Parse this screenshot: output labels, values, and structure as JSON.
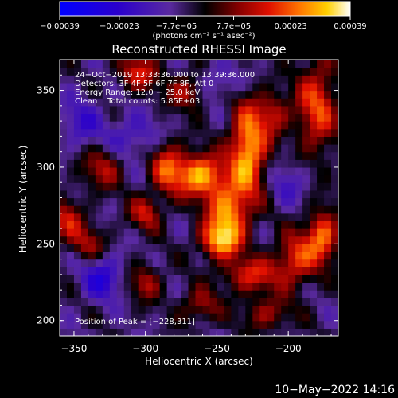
{
  "chart_data": {
    "type": "heatmap",
    "title": "Reconstructed RHESSI Image",
    "xlabel": "Heliocentric X (arcsec)",
    "ylabel": "Heliocentric Y (arcsec)",
    "xlim": [
      -360,
      -165
    ],
    "ylim": [
      190,
      370
    ],
    "x_ticks": [
      -350,
      -300,
      -250,
      -200
    ],
    "y_ticks": [
      200,
      250,
      300,
      350
    ],
    "x_tick_labels": [
      "−350",
      "−300",
      "−250",
      "−200"
    ],
    "y_tick_labels": [
      "200",
      "250",
      "300",
      "350"
    ],
    "colorbar": {
      "ticks": [
        -0.00039,
        -0.00023,
        -7.7e-05,
        7.7e-05,
        0.00023,
        0.00039
      ],
      "tick_labels": [
        "−0.00039",
        "−0.00023",
        "−7.7e−05",
        "7.7e−05",
        "0.00023",
        "0.00039"
      ],
      "range": [
        -0.00039,
        0.00039
      ],
      "units": "(photons cm⁻² s⁻¹ asec⁻²)"
    },
    "annotations": {
      "time": "24−Oct−2019 13:33:36.000 to 13:39:36.000",
      "detectors": "Detectors: 3F 4F 5F 6F 7F 8F, Att 0",
      "energy": "Energy Range: 12.0 − 25.0 keV",
      "method": "Clean    Total counts: 5.85E+03",
      "peak": "Position of Peak = [−228,311]"
    },
    "peak": [
      -228,
      311
    ],
    "sources": [
      {
        "x": -228,
        "y": 311,
        "amp": 0.00038,
        "sx": 9,
        "sy": 22
      },
      {
        "x": -262,
        "y": 295,
        "amp": 0.00036,
        "sx": 12,
        "sy": 10
      },
      {
        "x": -243,
        "y": 270,
        "amp": 0.00032,
        "sx": 10,
        "sy": 14
      },
      {
        "x": -248,
        "y": 252,
        "amp": 0.00028,
        "sx": 10,
        "sy": 8
      },
      {
        "x": -180,
        "y": 340,
        "amp": 0.00026,
        "sx": 10,
        "sy": 22
      },
      {
        "x": -176,
        "y": 255,
        "amp": 0.0003,
        "sx": 8,
        "sy": 12
      },
      {
        "x": -195,
        "y": 240,
        "amp": 0.00024,
        "sx": 10,
        "sy": 12
      },
      {
        "x": -226,
        "y": 230,
        "amp": 0.00022,
        "sx": 14,
        "sy": 8
      },
      {
        "x": -285,
        "y": 300,
        "amp": 0.00024,
        "sx": 8,
        "sy": 12
      },
      {
        "x": -330,
        "y": 300,
        "amp": 0.00018,
        "sx": 10,
        "sy": 10
      },
      {
        "x": -355,
        "y": 265,
        "amp": 0.0002,
        "sx": 8,
        "sy": 10
      },
      {
        "x": -300,
        "y": 270,
        "amp": 0.0002,
        "sx": 8,
        "sy": 8
      },
      {
        "x": -305,
        "y": 362,
        "amp": 0.00022,
        "sx": 10,
        "sy": 8
      },
      {
        "x": -270,
        "y": 350,
        "amp": 0.0002,
        "sx": 10,
        "sy": 8
      },
      {
        "x": -210,
        "y": 335,
        "amp": 0.00018,
        "sx": 8,
        "sy": 10
      },
      {
        "x": -340,
        "y": 250,
        "amp": 0.00016,
        "sx": 8,
        "sy": 8
      },
      {
        "x": -300,
        "y": 225,
        "amp": 0.00018,
        "sx": 8,
        "sy": 8
      },
      {
        "x": -262,
        "y": 210,
        "amp": 0.00016,
        "sx": 10,
        "sy": 8
      },
      {
        "x": -215,
        "y": 205,
        "amp": 0.00016,
        "sx": 12,
        "sy": 8
      },
      {
        "x": -330,
        "y": 228,
        "amp": -0.00018,
        "sx": 10,
        "sy": 10
      },
      {
        "x": -310,
        "y": 320,
        "amp": -0.00012,
        "sx": 14,
        "sy": 10
      },
      {
        "x": -345,
        "y": 330,
        "amp": -0.00012,
        "sx": 10,
        "sy": 12
      },
      {
        "x": -200,
        "y": 290,
        "amp": -0.0001,
        "sx": 10,
        "sy": 10
      },
      {
        "x": -250,
        "y": 355,
        "amp": -0.00012,
        "sx": 12,
        "sy": 8
      }
    ]
  },
  "footer": {
    "timestamp": "10−May−2022 14:16"
  },
  "colors": {
    "background": "#000000",
    "text": "#ffffff",
    "colormap": [
      "#0000ff",
      "#2200cc",
      "#3a1a9a",
      "#5a2aa0",
      "#000000",
      "#600000",
      "#c00000",
      "#ff3000",
      "#ff8000",
      "#ffd000",
      "#ffffff"
    ]
  }
}
